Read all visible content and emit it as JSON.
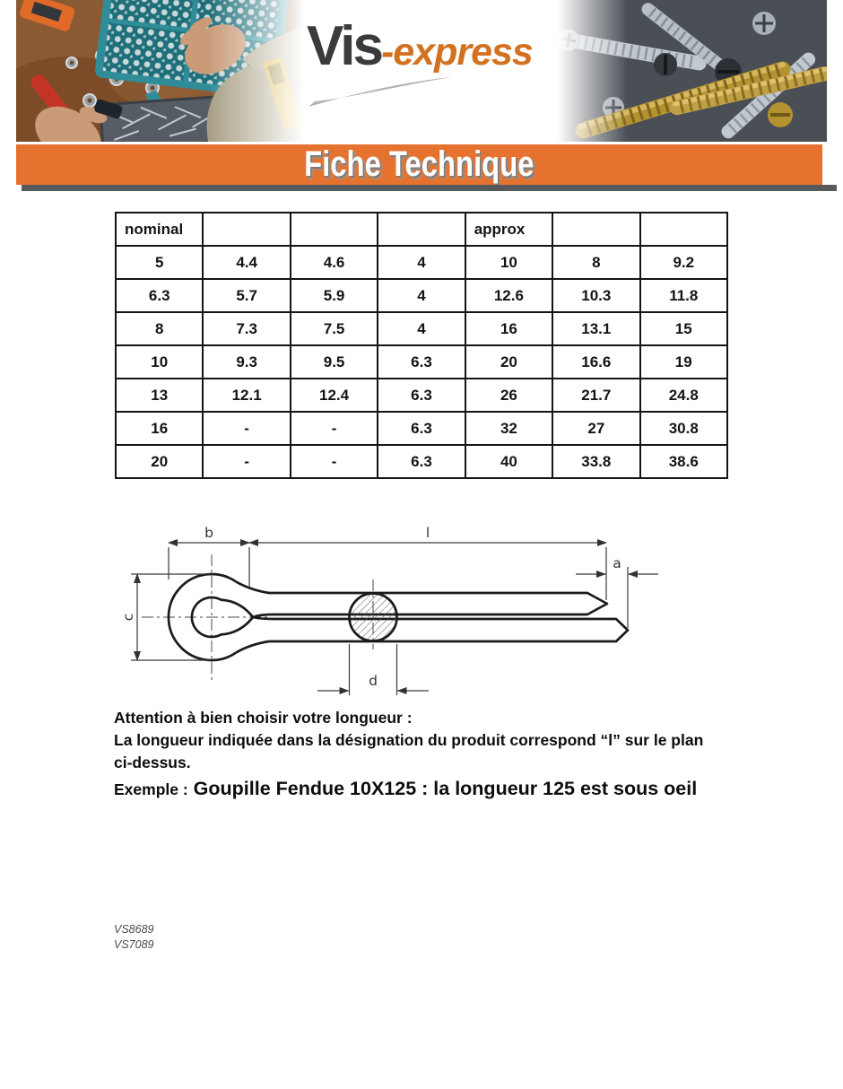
{
  "brand": {
    "logo_text_primary": "Vis",
    "logo_text_secondary": "-express"
  },
  "banner": {
    "title": "Fiche Technique"
  },
  "table": {
    "header": [
      "nominal",
      "",
      "",
      "",
      "approx",
      "",
      ""
    ],
    "rows": [
      [
        "5",
        "4.4",
        "4.6",
        "4",
        "10",
        "8",
        "9.2"
      ],
      [
        "6.3",
        "5.7",
        "5.9",
        "4",
        "12.6",
        "10.3",
        "11.8"
      ],
      [
        "8",
        "7.3",
        "7.5",
        "4",
        "16",
        "13.1",
        "15"
      ],
      [
        "10",
        "9.3",
        "9.5",
        "6.3",
        "20",
        "16.6",
        "19"
      ],
      [
        "13",
        "12.1",
        "12.4",
        "6.3",
        "26",
        "21.7",
        "24.8"
      ],
      [
        "16",
        "-",
        "-",
        "6.3",
        "32",
        "27",
        "30.8"
      ],
      [
        "20",
        "-",
        "-",
        "6.3",
        "40",
        "33.8",
        "38.6"
      ]
    ]
  },
  "diagram": {
    "dim_labels": {
      "b": "b",
      "l": "l",
      "a": "a",
      "c": "c",
      "d": "d"
    }
  },
  "notes": {
    "warning_line1": "Attention à bien choisir votre longueur :",
    "warning_line2": "La longueur indiquée dans la désignation du produit correspond “l” sur le plan",
    "warning_line3": "ci-dessus.",
    "example_label": "Exemple :",
    "example_text": " Goupille Fendue 10X125 : la longueur 125 est sous oeil"
  },
  "footer_refs": [
    "VS8689",
    "VS7089"
  ],
  "colors": {
    "accent_orange": "#e5722e",
    "banner_shadow_gray": "#58595b",
    "logo_dark": "#3b3b3d",
    "logo_orange": "#d2711f"
  }
}
